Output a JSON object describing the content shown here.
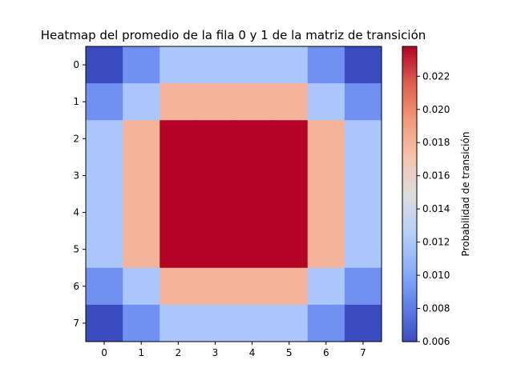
{
  "chart_data": {
    "type": "heatmap",
    "title": "Heatmap del promedio de la fila 0 y 1 de la matriz de transición",
    "xlabel": "",
    "ylabel": "",
    "x_categories": [
      "0",
      "1",
      "2",
      "3",
      "4",
      "5",
      "6",
      "7"
    ],
    "y_categories": [
      "0",
      "1",
      "2",
      "3",
      "4",
      "5",
      "6",
      "7"
    ],
    "values": [
      [
        0.006,
        0.009,
        0.012,
        0.012,
        0.012,
        0.012,
        0.009,
        0.006
      ],
      [
        0.009,
        0.012,
        0.018,
        0.018,
        0.018,
        0.018,
        0.012,
        0.009
      ],
      [
        0.012,
        0.018,
        0.0238,
        0.0238,
        0.0238,
        0.0238,
        0.018,
        0.012
      ],
      [
        0.012,
        0.018,
        0.0238,
        0.0238,
        0.0238,
        0.0238,
        0.018,
        0.012
      ],
      [
        0.012,
        0.018,
        0.0238,
        0.0238,
        0.0238,
        0.0238,
        0.018,
        0.012
      ],
      [
        0.012,
        0.018,
        0.0238,
        0.0238,
        0.0238,
        0.0238,
        0.018,
        0.012
      ],
      [
        0.009,
        0.012,
        0.018,
        0.018,
        0.018,
        0.018,
        0.012,
        0.009
      ],
      [
        0.006,
        0.009,
        0.012,
        0.012,
        0.012,
        0.012,
        0.009,
        0.006
      ]
    ],
    "colorbar": {
      "label": "Probabilidad de transición",
      "min": 0.006,
      "max": 0.0238,
      "ticks": [
        "0.006",
        "0.008",
        "0.010",
        "0.012",
        "0.014",
        "0.016",
        "0.018",
        "0.020",
        "0.022"
      ],
      "colormap": "coolwarm"
    },
    "grid": false
  }
}
